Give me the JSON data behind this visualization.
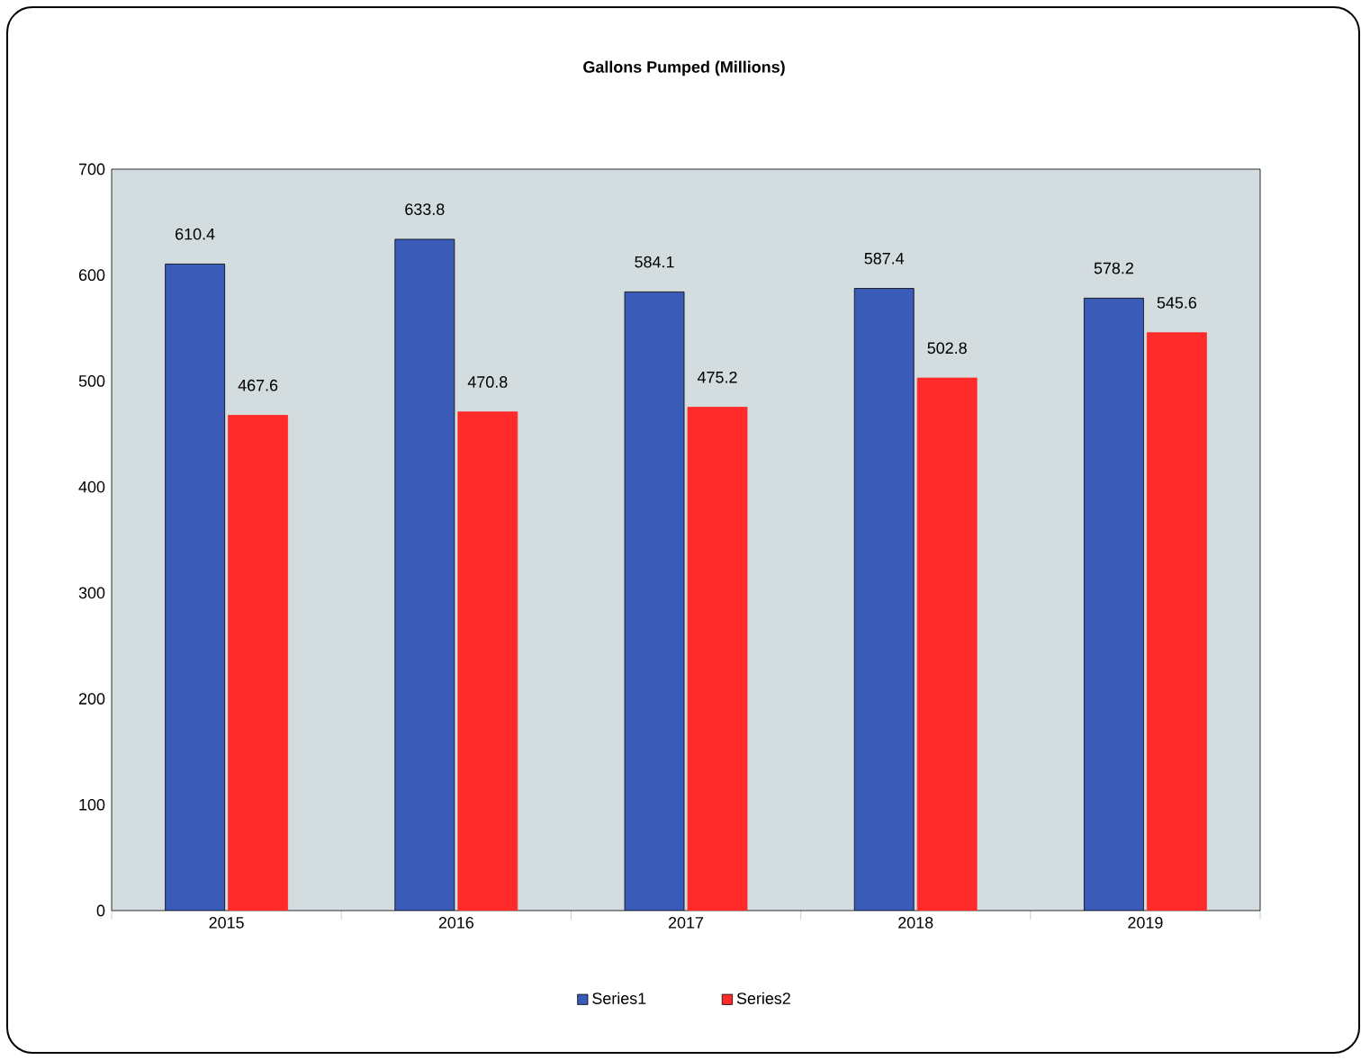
{
  "chart_data": {
    "type": "bar",
    "title": "Gallons Pumped (Millions)",
    "categories": [
      "2015",
      "2016",
      "2017",
      "2018",
      "2019"
    ],
    "series": [
      {
        "name": "Series1",
        "color": "#3a5cb8",
        "values": [
          610.4,
          633.8,
          584.1,
          587.4,
          578.2
        ]
      },
      {
        "name": "Series2",
        "color": "#ff2a2a",
        "values": [
          467.6,
          470.8,
          475.2,
          502.8,
          545.6
        ]
      }
    ],
    "ylim": [
      0,
      700
    ],
    "yticks": [
      0,
      100,
      200,
      300,
      400,
      500,
      600,
      700
    ],
    "data_labels": true,
    "legend": "bottom",
    "grid": false
  }
}
